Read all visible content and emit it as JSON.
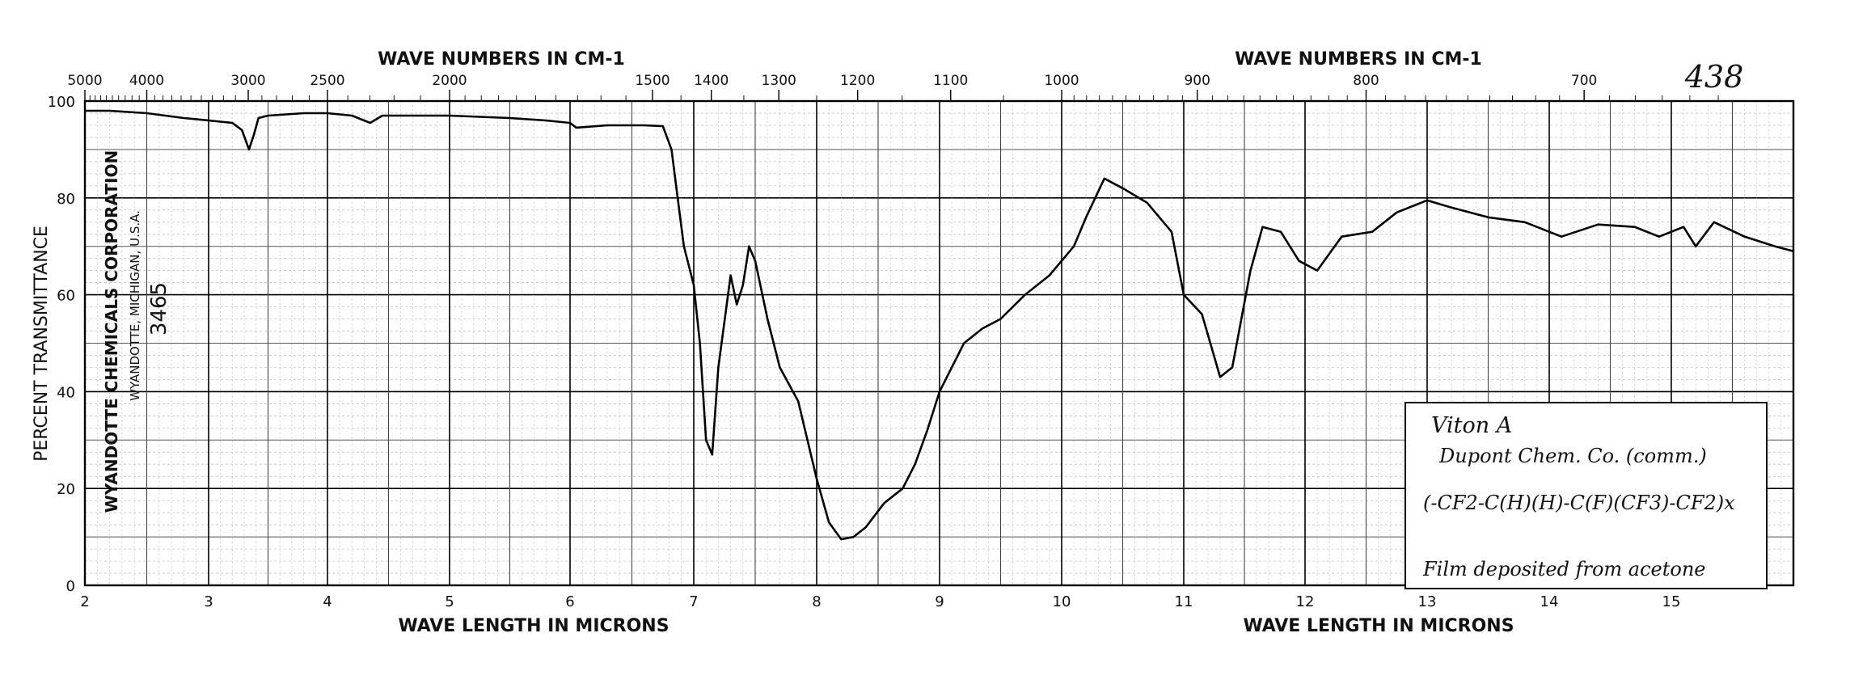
{
  "chart_data": {
    "type": "line",
    "ylabel": "PERCENT TRANSMITTANCE",
    "xlabel_bottom": [
      "WAVE LENGTH IN MICRONS",
      "WAVE LENGTH IN MICRONS"
    ],
    "xlabel_top": [
      "WAVE NUMBERS IN CM-1",
      "WAVE NUMBERS IN CM-1"
    ],
    "sheet_number": "438",
    "publisher": {
      "name": "WYANDOTTE CHEMICALS CORPORATION",
      "address": "WYANDOTTE, MICHIGAN, U.S.A.",
      "chart_id": "3465"
    },
    "annotation": {
      "title": "Viton A",
      "source": "Dupont Chem. Co. (comm.)",
      "formula": "(-CF2-C(H)(H)-C(F)(CF3)-CF2)x",
      "prep": "Film deposited from acetone"
    },
    "x_range_microns": [
      2,
      16
    ],
    "ylim": [
      0,
      100
    ],
    "grid": true,
    "y_ticks": [
      "0",
      "20",
      "40",
      "60",
      "80",
      "100"
    ],
    "x_ticks": [
      {
        "v": 2,
        "label": "2"
      },
      {
        "v": 3,
        "label": "3"
      },
      {
        "v": 4,
        "label": "4"
      },
      {
        "v": 5,
        "label": "5"
      },
      {
        "v": 6,
        "label": "6"
      },
      {
        "v": 7,
        "label": "7"
      },
      {
        "v": 8,
        "label": "8"
      },
      {
        "v": 9,
        "label": "9"
      },
      {
        "v": 10,
        "label": "10"
      },
      {
        "v": 11,
        "label": "11"
      },
      {
        "v": 12,
        "label": "12"
      },
      {
        "v": 13,
        "label": "13"
      },
      {
        "v": 14,
        "label": "14"
      },
      {
        "v": 15,
        "label": "15"
      }
    ],
    "wavenumber_ticks": [
      {
        "wn": 5000,
        "label": "5000"
      },
      {
        "wn": 4000,
        "label": "4000"
      },
      {
        "wn": 3000,
        "label": "3000"
      },
      {
        "wn": 2500,
        "label": "2500"
      },
      {
        "wn": 2000,
        "label": "2000"
      },
      {
        "wn": 1500,
        "label": "1500"
      },
      {
        "wn": 1400,
        "label": "1400"
      },
      {
        "wn": 1300,
        "label": "1300"
      },
      {
        "wn": 1200,
        "label": "1200"
      },
      {
        "wn": 1100,
        "label": "1100"
      },
      {
        "wn": 1000,
        "label": "1000"
      },
      {
        "wn": 900,
        "label": "900"
      },
      {
        "wn": 800,
        "label": "800"
      },
      {
        "wn": 700,
        "label": "700"
      }
    ],
    "series": [
      {
        "x": [
          2.0,
          2.2,
          2.5,
          2.8,
          3.0,
          3.2,
          3.28,
          3.34,
          3.38,
          3.42,
          3.5,
          3.8,
          4.0,
          4.2,
          4.3,
          4.35,
          4.45,
          4.6,
          5.0,
          5.5,
          5.8,
          6.0,
          6.05,
          6.3,
          6.6,
          6.75,
          6.82,
          6.87,
          6.92,
          7.0,
          7.05,
          7.1,
          7.15,
          7.2,
          7.3,
          7.35,
          7.4,
          7.45,
          7.5,
          7.6,
          7.7,
          7.85,
          8.0,
          8.1,
          8.2,
          8.3,
          8.4,
          8.55,
          8.7,
          8.8,
          8.9,
          9.0,
          9.2,
          9.35,
          9.5,
          9.7,
          9.9,
          10.1,
          10.2,
          10.35,
          10.5,
          10.7,
          10.9,
          11.0,
          11.15,
          11.3,
          11.4,
          11.55,
          11.65,
          11.8,
          11.95,
          12.1,
          12.3,
          12.55,
          12.75,
          13.0,
          13.2,
          13.5,
          13.8,
          14.1,
          14.4,
          14.7,
          14.9,
          15.1,
          15.2,
          15.35,
          15.6,
          15.85,
          16.0
        ],
        "y": [
          98,
          98,
          97.5,
          96.5,
          96,
          95.5,
          94,
          90,
          93,
          96.5,
          97,
          97.5,
          97.5,
          97,
          96,
          95.5,
          97,
          97,
          97,
          96.5,
          96,
          95.5,
          94.5,
          95,
          95,
          94.8,
          90,
          80,
          70,
          62,
          50,
          30,
          27,
          45,
          64,
          58,
          62,
          70,
          67,
          55,
          45,
          38,
          22,
          13,
          9.5,
          10,
          12,
          17,
          20,
          25,
          32,
          40,
          50,
          53,
          55,
          60,
          64,
          70,
          76,
          84,
          82,
          79,
          73,
          60,
          56,
          43,
          45,
          65,
          74,
          73,
          67,
          65,
          72,
          73,
          77,
          79.5,
          78,
          76,
          75,
          72,
          74.5,
          74,
          72,
          74,
          70,
          75,
          72,
          70,
          69
        ]
      }
    ]
  }
}
